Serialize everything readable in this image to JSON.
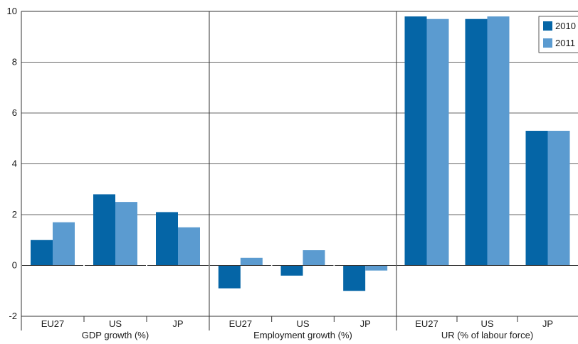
{
  "chart_data": {
    "type": "bar",
    "title": "",
    "ylim": [
      -2,
      10
    ],
    "yticks": [
      -2,
      0,
      2,
      4,
      6,
      8,
      10
    ],
    "grid": true,
    "legend_position": "top-right",
    "panels": [
      {
        "label": "GDP growth (%)",
        "categories": [
          "EU27",
          "US",
          "JP"
        ],
        "series": [
          {
            "name": "2010",
            "values": [
              1.0,
              2.8,
              2.1
            ]
          },
          {
            "name": "2011",
            "values": [
              1.7,
              2.5,
              1.5
            ]
          }
        ]
      },
      {
        "label": "Employment growth (%)",
        "categories": [
          "EU27",
          "US",
          "JP"
        ],
        "series": [
          {
            "name": "2010",
            "values": [
              -0.9,
              -0.4,
              -1.0
            ]
          },
          {
            "name": "2011",
            "values": [
              0.3,
              0.6,
              -0.2
            ]
          }
        ]
      },
      {
        "label": "UR (% of labour force)",
        "categories": [
          "EU27",
          "US",
          "JP"
        ],
        "series": [
          {
            "name": "2010",
            "values": [
              9.8,
              9.7,
              5.3
            ]
          },
          {
            "name": "2011",
            "values": [
              9.7,
              9.8,
              5.3
            ]
          }
        ]
      }
    ],
    "legend": [
      "2010",
      "2011"
    ]
  },
  "colors": {
    "series_2010": "#0565a6",
    "series_2011": "#5b9bd0",
    "grid": "#333333",
    "axis": "#333333"
  }
}
